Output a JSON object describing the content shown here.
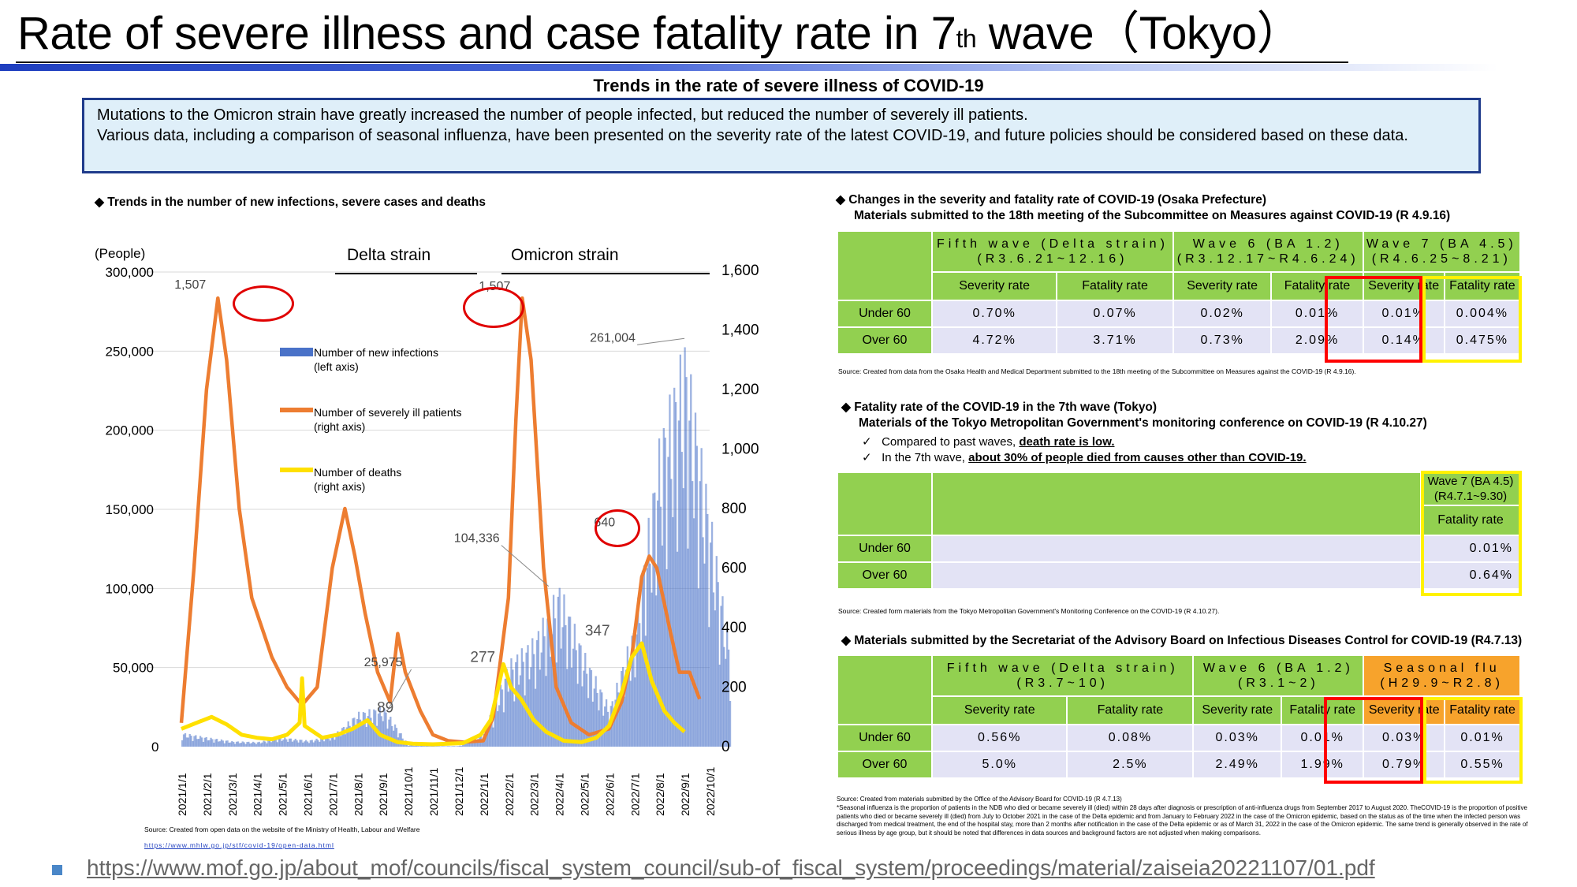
{
  "title": {
    "main": "Rate of severe illness and case fatality rate in 7",
    "sup": "th",
    "tail": " wave（Tokyo）"
  },
  "subtitle": "Trends in the rate of severe illness of COVID-19",
  "summary": {
    "line1": "Mutations to the Omicron strain have greatly increased the number of people infected, but reduced the number of severely ill patients.",
    "line2": "Various data, including a comparison of seasonal influenza, have been presented on the severity rate of the latest COVID-19, and future policies should be considered based on these data."
  },
  "colors": {
    "infections": "#4a72c8",
    "severe": "#ed7d31",
    "deaths": "#ffe000",
    "green": "#92d050",
    "orange": "#f7a32c",
    "highlight_red": "#ff0000",
    "highlight_yellow": "#fff200",
    "title_bar": "#1f3fbf"
  },
  "chart_section": {
    "heading": "◆  Trends in the number of new infections, severe cases and deaths",
    "left_unit": "(People)",
    "delta_label": "Delta strain",
    "omicron_label": "Omicron strain",
    "source": "Source: Created from open data on the website of the Ministry of Health, Labour and Welfare",
    "source_url": "https://www.mhlw.go.jp/stf/covid-19/open-data.html"
  },
  "chart_data": {
    "type": "area",
    "x_ticks": [
      "2021/1/1",
      "2021/2/1",
      "2021/3/1",
      "2021/4/1",
      "2021/5/1",
      "2021/6/1",
      "2021/7/1",
      "2021/8/1",
      "2021/9/1",
      "2021/10/1",
      "2021/11/1",
      "2021/12/1",
      "2022/1/1",
      "2022/2/1",
      "2022/3/1",
      "2022/4/1",
      "2022/5/1",
      "2022/6/1",
      "2022/7/1",
      "2022/8/1",
      "2022/9/1",
      "2022/10/1"
    ],
    "y_left": {
      "ticks": [
        "0",
        "50,000",
        "100,000",
        "150,000",
        "200,000",
        "250,000",
        "300,000"
      ],
      "range": [
        0,
        300000
      ]
    },
    "y_right": {
      "ticks": [
        "0",
        "200",
        "400",
        "600",
        "800",
        "1,000",
        "1,200",
        "1,400",
        "1,600"
      ],
      "range": [
        0,
        1600
      ]
    },
    "legend": [
      {
        "key": "infections",
        "label1": "Number of new infections",
        "label2": "(left axis)"
      },
      {
        "key": "severe",
        "label1": "Number of severely ill patients",
        "label2": "(right axis)"
      },
      {
        "key": "deaths",
        "label1": "Number of deaths",
        "label2": "(right axis)"
      }
    ],
    "series": [
      {
        "name": "Number of new infections",
        "axis": "left",
        "points": [
          [
            0,
            9000
          ],
          [
            1,
            6000
          ],
          [
            2,
            3500
          ],
          [
            3,
            3000
          ],
          [
            4,
            6000
          ],
          [
            5,
            4000
          ],
          [
            6,
            7000
          ],
          [
            7,
            22000
          ],
          [
            8,
            25975
          ],
          [
            9,
            1000
          ],
          [
            10,
            300
          ],
          [
            11,
            400
          ],
          [
            12,
            9000
          ],
          [
            13,
            55000
          ],
          [
            14,
            70000
          ],
          [
            15,
            104336
          ],
          [
            16,
            60000
          ],
          [
            17,
            25000
          ],
          [
            18,
            80000
          ],
          [
            19,
            200000
          ],
          [
            20,
            261004
          ],
          [
            21,
            150000
          ],
          [
            21.8,
            60000
          ]
        ]
      },
      {
        "name": "Number of severely ill patients",
        "axis": "right",
        "points": [
          [
            0,
            80
          ],
          [
            0.5,
            600
          ],
          [
            1,
            1200
          ],
          [
            1.45,
            1507
          ],
          [
            1.8,
            1300
          ],
          [
            2.3,
            800
          ],
          [
            2.8,
            500
          ],
          [
            3.2,
            400
          ],
          [
            3.6,
            300
          ],
          [
            4.2,
            200
          ],
          [
            4.8,
            140
          ],
          [
            5.4,
            200
          ],
          [
            6,
            600
          ],
          [
            6.5,
            800
          ],
          [
            6.9,
            640
          ],
          [
            7.3,
            450
          ],
          [
            7.8,
            250
          ],
          [
            8.3,
            150
          ],
          [
            8.6,
            380
          ],
          [
            8.9,
            250
          ],
          [
            9.5,
            120
          ],
          [
            10,
            40
          ],
          [
            10.6,
            20
          ],
          [
            11.2,
            15
          ],
          [
            12,
            20
          ],
          [
            12.4,
            100
          ],
          [
            13,
            500
          ],
          [
            13.3,
            1100
          ],
          [
            13.55,
            1507
          ],
          [
            13.9,
            1300
          ],
          [
            14.4,
            600
          ],
          [
            14.9,
            200
          ],
          [
            15.5,
            80
          ],
          [
            16.2,
            40
          ],
          [
            17,
            60
          ],
          [
            17.5,
            150
          ],
          [
            17.9,
            300
          ],
          [
            18.3,
            570
          ],
          [
            18.6,
            640
          ],
          [
            18.9,
            600
          ],
          [
            19.4,
            400
          ],
          [
            19.8,
            250
          ],
          [
            20.2,
            250
          ],
          [
            20.6,
            160
          ]
        ]
      },
      {
        "name": "Number of deaths",
        "axis": "right",
        "points": [
          [
            0,
            60
          ],
          [
            0.6,
            80
          ],
          [
            1.2,
            100
          ],
          [
            1.8,
            75
          ],
          [
            2.4,
            40
          ],
          [
            3,
            30
          ],
          [
            3.6,
            25
          ],
          [
            4.2,
            40
          ],
          [
            4.7,
            80
          ],
          [
            4.8,
            230
          ],
          [
            4.9,
            70
          ],
          [
            5.6,
            30
          ],
          [
            6.2,
            40
          ],
          [
            6.8,
            60
          ],
          [
            7.4,
            89
          ],
          [
            7.9,
            40
          ],
          [
            8.6,
            15
          ],
          [
            9.2,
            10
          ],
          [
            10,
            8
          ],
          [
            10.6,
            10
          ],
          [
            11.2,
            12
          ],
          [
            11.9,
            40
          ],
          [
            12.3,
            90
          ],
          [
            12.6,
            200
          ],
          [
            12.8,
            277
          ],
          [
            13.1,
            200
          ],
          [
            13.5,
            160
          ],
          [
            14,
            90
          ],
          [
            14.5,
            50
          ],
          [
            15.2,
            20
          ],
          [
            15.9,
            15
          ],
          [
            16.5,
            30
          ],
          [
            17,
            70
          ],
          [
            17.5,
            180
          ],
          [
            17.9,
            300
          ],
          [
            18.3,
            347
          ],
          [
            18.7,
            220
          ],
          [
            19.2,
            120
          ],
          [
            19.6,
            80
          ],
          [
            20,
            50
          ]
        ]
      }
    ],
    "annotations": [
      {
        "text": "1,507",
        "series": "severe",
        "circled": true
      },
      {
        "text": "1,507",
        "series": "severe",
        "circled": true
      },
      {
        "text": "640",
        "series": "severe",
        "circled": true
      },
      {
        "text": "261,004",
        "series": "infections"
      },
      {
        "text": "104,336",
        "series": "infections"
      },
      {
        "text": "25,975",
        "series": "infections"
      },
      {
        "text": "277",
        "series": "deaths"
      },
      {
        "text": "347",
        "series": "deaths"
      },
      {
        "text": "89",
        "series": "deaths"
      }
    ]
  },
  "osaka": {
    "heading1": "◆  Changes in the severity and fatality rate of COVID-19 (Osaka Prefecture)",
    "heading2": "Materials submitted to the 18th meeting of the Subcommittee on Measures against COVID-19 (R 4.9.16)",
    "waves": [
      {
        "name": "Fifth wave (Delta strain)",
        "period": "(R3.6.21~12.16)"
      },
      {
        "name": "Wave 6 (BA 1.2)",
        "period": "(R3.12.17~R4.6.24)"
      },
      {
        "name": "Wave 7 (BA 4.5)",
        "period": "(R4.6.25~8.21)"
      }
    ],
    "col_severity": "Severity rate",
    "col_fatality": "Fatality rate",
    "rows": [
      {
        "label": "Under 60",
        "values": [
          "0.70%",
          "0.07%",
          "0.02%",
          "0.01%",
          "0.01%",
          "0.004%"
        ]
      },
      {
        "label": "Over 60",
        "values": [
          "4.72%",
          "3.71%",
          "0.73%",
          "2.09%",
          "0.14%",
          "0.475%"
        ]
      }
    ],
    "source": "Source: Created from data from the Osaka Health and Medical Department submitted to the 18th meeting of the Subcommittee on Measures against the COVID-19 (R 4.9.16)."
  },
  "tokyo": {
    "heading1": "◆  Fatality rate of the COVID-19 in the 7th wave (Tokyo)",
    "heading2": "Materials of the Tokyo Metropolitan Government's monitoring conference on COVID-19 (R 4.10.27)",
    "check1_pre": "Compared to past waves, ",
    "check1_em": "death rate is low.",
    "check2_pre": "In the 7th wave, ",
    "check2_em": "about 30% of people died from causes other than COVID-19.",
    "wave": "Wave 7 (BA 4.5)",
    "period": "(R4.7.1~9.30)",
    "col_fatality": "Fatality rate",
    "rows": [
      {
        "label": "Under 60",
        "value": "0.01%"
      },
      {
        "label": "Over 60",
        "value": "0.64%"
      }
    ],
    "source": "Source: Created form materials from the Tokyo Metropolitan Government's Monitoring Conference on the COVID-19 (R 4.10.27)."
  },
  "advisory": {
    "heading": "◆  Materials submitted by the Secretariat of the Advisory Board on Infectious Diseases Control for COVID-19 (R4.7.13)",
    "waves": [
      {
        "name": "Fifth wave (Delta strain)",
        "period": "(R3.7~10)"
      },
      {
        "name": "Wave 6 (BA 1.2)",
        "period": "(R3.1~2)"
      },
      {
        "name": "Seasonal flu",
        "period": "(H29.9~R2.8)"
      }
    ],
    "col_severity": "Severity rate",
    "col_fatality": "Fatality rate",
    "rows": [
      {
        "label": "Under 60",
        "values": [
          "0.56%",
          "0.08%",
          "0.03%",
          "0.01%",
          "0.03%",
          "0.01%"
        ]
      },
      {
        "label": "Over 60",
        "values": [
          "5.0%",
          "2.5%",
          "2.49%",
          "1.99%",
          "0.79%",
          "0.55%"
        ]
      }
    ],
    "source1": "Source: Created from materials submitted by the Office of the Advisory Board for COVID-19 (R 4.7.13)",
    "source2": "*Seasonal influenza is the proportion of patients in the NDB who died or became severely ill (died) within 28 days after diagnosis or prescription of anti-influenza drugs from September 2017 to August 2020. TheCOVID-19 is the proportion of positive patients who died or became severely ill (died) from July to October 2021 in the case of the Delta epidemic and from January to February 2022 in the case of the Omicron epidemic, based on the status as of the time when the infected person was discharged from medical treatment, the end of the hospital stay, more than 2 months after notification in the case of the Delta epidemic or as of March 31, 2022 in the case of the Omicron epidemic. The same trend is generally observed in the rate of serious illness by age group, but it should be noted that differences in data sources and background factors are not adjusted when making comparisons."
  },
  "footer_url": "https://www.mof.go.jp/about_mof/councils/fiscal_system_council/sub-of_fiscal_system/proceedings/material/zaiseia20221107/01.pdf"
}
